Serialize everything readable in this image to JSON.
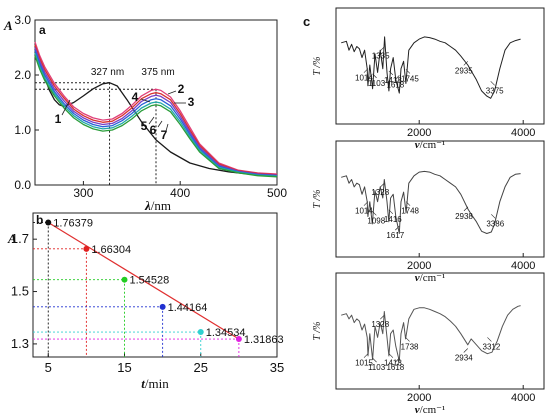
{
  "chart_data": [
    {
      "panel": "a",
      "type": "line",
      "xlabel_italic": "λ",
      "xlabel_unit": "/nm",
      "ylabel": "A",
      "xlim": [
        250,
        500
      ],
      "ylim": [
        0.0,
        3.0
      ],
      "xticks": [
        300,
        400,
        500
      ],
      "yticks": [
        0.0,
        1.0,
        2.0,
        3.0
      ],
      "ytick_labels": [
        "0.0",
        "1.0",
        "2.0",
        "3.0"
      ],
      "annotations": [
        {
          "text": "327 nm",
          "x": 327,
          "y": 1.83
        },
        {
          "text": "375 nm",
          "x": 375,
          "y": 1.72
        }
      ],
      "curve_labels": [
        "1",
        "2",
        "3",
        "4",
        "5",
        "6",
        "7"
      ],
      "series": [
        {
          "label": "1",
          "color": "#1a1a1a",
          "x": [
            250,
            255,
            260,
            265,
            270,
            275,
            280,
            290,
            300,
            310,
            320,
            327,
            335,
            345,
            360,
            375,
            390,
            410,
            430,
            450,
            470,
            490,
            500
          ],
          "y": [
            2.45,
            2.2,
            1.95,
            1.72,
            1.55,
            1.46,
            1.43,
            1.5,
            1.62,
            1.75,
            1.84,
            1.86,
            1.8,
            1.55,
            1.15,
            0.82,
            0.6,
            0.4,
            0.3,
            0.24,
            0.2,
            0.17,
            0.16
          ]
        },
        {
          "label": "2",
          "color": "#e0407a",
          "x": [
            250,
            255,
            260,
            270,
            280,
            290,
            300,
            310,
            320,
            330,
            340,
            350,
            360,
            370,
            375,
            380,
            390,
            400,
            410,
            420,
            440,
            460,
            480,
            500
          ],
          "y": [
            2.6,
            2.35,
            2.15,
            1.85,
            1.62,
            1.42,
            1.3,
            1.22,
            1.18,
            1.2,
            1.3,
            1.45,
            1.62,
            1.72,
            1.74,
            1.72,
            1.6,
            1.35,
            1.05,
            0.75,
            0.4,
            0.27,
            0.22,
            0.2
          ]
        },
        {
          "label": "3",
          "color": "#d93030",
          "x": [
            250,
            255,
            260,
            270,
            280,
            290,
            300,
            310,
            320,
            330,
            340,
            350,
            360,
            370,
            375,
            380,
            390,
            400,
            410,
            420,
            440,
            460,
            480,
            500
          ],
          "y": [
            2.55,
            2.3,
            2.1,
            1.8,
            1.58,
            1.38,
            1.26,
            1.18,
            1.14,
            1.16,
            1.26,
            1.4,
            1.57,
            1.66,
            1.68,
            1.66,
            1.55,
            1.3,
            1.0,
            0.72,
            0.38,
            0.26,
            0.21,
            0.19
          ]
        },
        {
          "label": "4",
          "color": "#7a3fc4",
          "x": [
            250,
            255,
            260,
            270,
            280,
            290,
            300,
            310,
            320,
            330,
            340,
            350,
            360,
            370,
            375,
            380,
            390,
            400,
            410,
            420,
            440,
            460,
            480,
            500
          ],
          "y": [
            2.5,
            2.25,
            2.05,
            1.75,
            1.53,
            1.34,
            1.22,
            1.14,
            1.1,
            1.12,
            1.21,
            1.35,
            1.52,
            1.61,
            1.63,
            1.61,
            1.5,
            1.25,
            0.96,
            0.69,
            0.36,
            0.25,
            0.2,
            0.18
          ]
        },
        {
          "label": "5",
          "color": "#2a60d8",
          "x": [
            250,
            255,
            260,
            270,
            280,
            290,
            300,
            310,
            320,
            330,
            340,
            350,
            360,
            370,
            375,
            380,
            390,
            400,
            410,
            420,
            440,
            460,
            480,
            500
          ],
          "y": [
            2.45,
            2.2,
            2.0,
            1.7,
            1.48,
            1.3,
            1.18,
            1.1,
            1.06,
            1.08,
            1.17,
            1.3,
            1.46,
            1.55,
            1.57,
            1.55,
            1.44,
            1.2,
            0.92,
            0.66,
            0.34,
            0.24,
            0.19,
            0.17
          ]
        },
        {
          "label": "6",
          "color": "#20a8a8",
          "x": [
            250,
            255,
            260,
            270,
            280,
            290,
            300,
            310,
            320,
            330,
            340,
            350,
            360,
            370,
            375,
            380,
            390,
            400,
            410,
            420,
            440,
            460,
            480,
            500
          ],
          "y": [
            2.4,
            2.15,
            1.95,
            1.66,
            1.44,
            1.26,
            1.14,
            1.06,
            1.02,
            1.04,
            1.12,
            1.25,
            1.4,
            1.49,
            1.51,
            1.49,
            1.38,
            1.15,
            0.88,
            0.63,
            0.32,
            0.23,
            0.18,
            0.16
          ]
        },
        {
          "label": "7",
          "color": "#2a9d3a",
          "x": [
            250,
            255,
            260,
            270,
            280,
            290,
            300,
            310,
            320,
            330,
            340,
            350,
            360,
            370,
            375,
            380,
            390,
            400,
            410,
            420,
            440,
            460,
            480,
            500
          ],
          "y": [
            2.35,
            2.1,
            1.9,
            1.62,
            1.4,
            1.22,
            1.1,
            1.02,
            0.98,
            1.0,
            1.08,
            1.2,
            1.35,
            1.44,
            1.46,
            1.44,
            1.33,
            1.1,
            0.84,
            0.6,
            0.3,
            0.22,
            0.17,
            0.15
          ]
        }
      ]
    },
    {
      "panel": "b",
      "type": "scatter",
      "xlabel_italic": "t",
      "xlabel_unit": "/min",
      "ylabel": "A",
      "xlim": [
        3,
        35
      ],
      "ylim": [
        1.25,
        1.8
      ],
      "xticks": [
        5,
        15,
        25,
        35
      ],
      "yticks": [
        1.3,
        1.5,
        1.7
      ],
      "ytick_labels": [
        "1.3",
        "1.5",
        "1.7"
      ],
      "fit_line": {
        "x": [
          5,
          30
        ],
        "y": [
          1.76379,
          1.31863
        ],
        "color": "#e03030"
      },
      "points": [
        {
          "x": 5,
          "y": 1.76379,
          "label": "1.76379",
          "color": "#111111"
        },
        {
          "x": 10,
          "y": 1.66304,
          "label": "1.66304",
          "color": "#e02020"
        },
        {
          "x": 15,
          "y": 1.54528,
          "label": "1.54528",
          "color": "#22cc22"
        },
        {
          "x": 20,
          "y": 1.44164,
          "label": "1.44164",
          "color": "#2030d0"
        },
        {
          "x": 25,
          "y": 1.34534,
          "label": "1.34534",
          "color": "#30d0d0"
        },
        {
          "x": 30,
          "y": 1.31863,
          "label": "1.31863",
          "color": "#e020e0"
        }
      ]
    },
    {
      "panel": "c",
      "type": "line",
      "xlabel_italic": "v",
      "xlabel_unit": "/cm⁻¹",
      "ylabel": "T /%",
      "xlim": [
        400,
        4400
      ],
      "xticks": [
        2000,
        4000
      ],
      "spectra": [
        {
          "color": "#222222",
          "peaks": [
            {
              "text": "1014",
              "x": 1014,
              "y": 0.55
            },
            {
              "text": "1103",
              "x": 1103,
              "y": 0.62
            },
            {
              "text": "1335",
              "x": 1335,
              "y": 0.25
            },
            {
              "text": "1418",
              "x": 1418,
              "y": 0.58
            },
            {
              "text": "1618",
              "x": 1618,
              "y": 0.64
            },
            {
              "text": "1745",
              "x": 1745,
              "y": 0.56
            },
            {
              "text": "2935",
              "x": 2935,
              "y": 0.45
            },
            {
              "text": "3375",
              "x": 3375,
              "y": 0.72
            }
          ],
          "x": [
            500,
            600,
            650,
            700,
            750,
            800,
            850,
            900,
            950,
            1000,
            1014,
            1050,
            1103,
            1150,
            1200,
            1250,
            1300,
            1335,
            1380,
            1418,
            1450,
            1500,
            1550,
            1618,
            1650,
            1700,
            1745,
            1800,
            1900,
            2000,
            2100,
            2200,
            2300,
            2400,
            2500,
            2600,
            2700,
            2800,
            2935,
            3000,
            3100,
            3200,
            3300,
            3375,
            3450,
            3550,
            3650,
            3750,
            3850,
            3950
          ],
          "y": [
            0.2,
            0.18,
            0.3,
            0.22,
            0.32,
            0.25,
            0.28,
            0.4,
            0.3,
            0.55,
            0.78,
            0.5,
            0.82,
            0.35,
            0.6,
            0.3,
            0.55,
            0.12,
            0.6,
            0.85,
            0.55,
            0.4,
            0.7,
            0.88,
            0.55,
            0.45,
            0.75,
            0.3,
            0.2,
            0.15,
            0.12,
            0.13,
            0.15,
            0.18,
            0.2,
            0.25,
            0.3,
            0.38,
            0.5,
            0.58,
            0.7,
            0.85,
            0.92,
            0.95,
            0.85,
            0.55,
            0.3,
            0.2,
            0.17,
            0.15
          ]
        },
        {
          "color": "#444444",
          "peaks": [
            {
              "text": "1014",
              "x": 1014,
              "y": 0.55
            },
            {
              "text": "1098",
              "x": 1098,
              "y": 0.68
            },
            {
              "text": "1328",
              "x": 1328,
              "y": 0.3
            },
            {
              "text": "1416",
              "x": 1416,
              "y": 0.66
            },
            {
              "text": "1617",
              "x": 1617,
              "y": 0.88
            },
            {
              "text": "1748",
              "x": 1748,
              "y": 0.55
            },
            {
              "text": "2938",
              "x": 2938,
              "y": 0.62
            },
            {
              "text": "3386",
              "x": 3386,
              "y": 0.72
            }
          ],
          "x": [
            500,
            600,
            650,
            700,
            750,
            800,
            850,
            900,
            950,
            1000,
            1014,
            1050,
            1098,
            1150,
            1200,
            1250,
            1300,
            1328,
            1380,
            1416,
            1450,
            1500,
            1550,
            1617,
            1650,
            1700,
            1748,
            1800,
            1900,
            2000,
            2100,
            2200,
            2300,
            2400,
            2500,
            2600,
            2700,
            2800,
            2938,
            3000,
            3100,
            3200,
            3300,
            3386,
            3450,
            3550,
            3650,
            3750,
            3850,
            3950
          ],
          "y": [
            0.22,
            0.2,
            0.3,
            0.25,
            0.35,
            0.3,
            0.32,
            0.45,
            0.35,
            0.55,
            0.75,
            0.55,
            0.85,
            0.4,
            0.55,
            0.35,
            0.5,
            0.25,
            0.55,
            0.82,
            0.5,
            0.45,
            0.75,
            0.98,
            0.55,
            0.42,
            0.7,
            0.3,
            0.2,
            0.15,
            0.14,
            0.15,
            0.18,
            0.2,
            0.25,
            0.3,
            0.35,
            0.45,
            0.65,
            0.72,
            0.82,
            0.95,
            0.98,
            0.96,
            0.85,
            0.55,
            0.35,
            0.22,
            0.18,
            0.17
          ]
        },
        {
          "color": "#555555",
          "peaks": [
            {
              "text": "1015",
              "x": 1015,
              "y": 0.82
            },
            {
              "text": "1103",
              "x": 1103,
              "y": 0.88
            },
            {
              "text": "1328",
              "x": 1328,
              "y": 0.3
            },
            {
              "text": "1418",
              "x": 1418,
              "y": 0.82
            },
            {
              "text": "1618",
              "x": 1618,
              "y": 0.88
            },
            {
              "text": "1738",
              "x": 1738,
              "y": 0.6
            },
            {
              "text": "2934",
              "x": 2934,
              "y": 0.75
            },
            {
              "text": "3312",
              "x": 3312,
              "y": 0.6
            }
          ],
          "x": [
            500,
            600,
            650,
            700,
            750,
            800,
            850,
            900,
            950,
            1000,
            1015,
            1050,
            1103,
            1150,
            1200,
            1250,
            1300,
            1328,
            1380,
            1418,
            1450,
            1500,
            1550,
            1618,
            1650,
            1700,
            1738,
            1800,
            1900,
            2000,
            2100,
            2200,
            2300,
            2400,
            2500,
            2600,
            2700,
            2800,
            2934,
            3000,
            3100,
            3200,
            3312,
            3400,
            3500,
            3600,
            3700,
            3800,
            3900,
            3950
          ],
          "y": [
            0.3,
            0.28,
            0.35,
            0.3,
            0.4,
            0.35,
            0.38,
            0.5,
            0.42,
            0.6,
            0.85,
            0.55,
            0.9,
            0.45,
            0.6,
            0.4,
            0.55,
            0.25,
            0.6,
            0.85,
            0.55,
            0.5,
            0.72,
            0.92,
            0.55,
            0.4,
            0.62,
            0.35,
            0.22,
            0.2,
            0.2,
            0.22,
            0.25,
            0.28,
            0.32,
            0.38,
            0.45,
            0.55,
            0.7,
            0.62,
            0.7,
            0.78,
            0.82,
            0.8,
            0.65,
            0.45,
            0.3,
            0.22,
            0.18,
            0.17
          ]
        }
      ]
    }
  ],
  "panel_labels": {
    "a": "a",
    "b": "b",
    "c": "c"
  }
}
